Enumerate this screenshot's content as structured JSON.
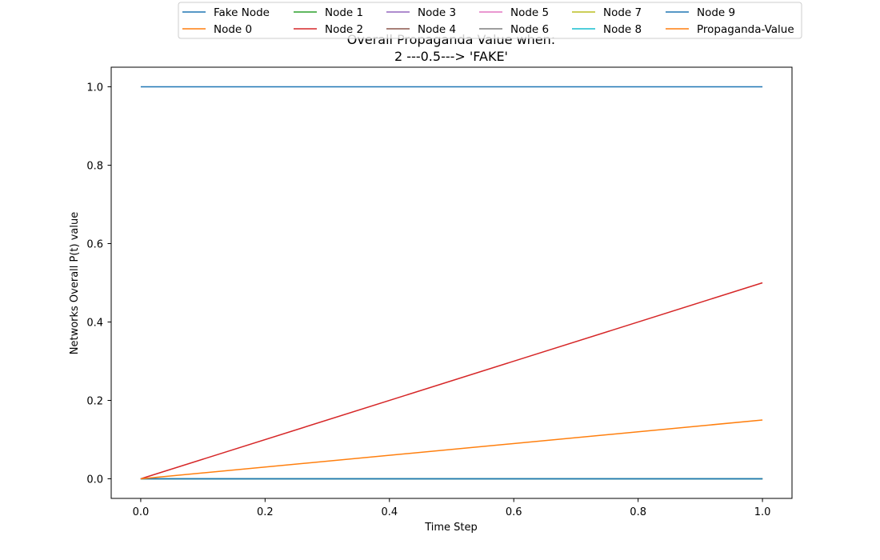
{
  "chart_data": {
    "type": "line",
    "title_lines": [
      "Overall Propaganda Value when:",
      "2 ---0.5---> 'FAKE'"
    ],
    "xlabel": "Time Step",
    "ylabel": "Networks Overall P(t) value",
    "xlim": [
      -0.0475,
      1.0475
    ],
    "ylim": [
      -0.05,
      1.05
    ],
    "x_ticks": [
      "0.0",
      "0.2",
      "0.4",
      "0.6",
      "0.8",
      "1.0"
    ],
    "y_ticks": [
      "0.0",
      "0.2",
      "0.4",
      "0.6",
      "0.8",
      "1.0"
    ],
    "legend_position": "upper-center",
    "x": [
      0,
      1
    ],
    "series": [
      {
        "name": "Fake Node",
        "color": "#1f77b4",
        "values": [
          1.0,
          1.0
        ]
      },
      {
        "name": "Node 0",
        "color": "#ff7f0e",
        "values": [
          0.0,
          0.0
        ]
      },
      {
        "name": "Node 1",
        "color": "#2ca02c",
        "values": [
          0.0,
          0.0
        ]
      },
      {
        "name": "Node 2",
        "color": "#d62728",
        "values": [
          0.0,
          0.5
        ]
      },
      {
        "name": "Node 3",
        "color": "#9467bd",
        "values": [
          0.0,
          0.0
        ]
      },
      {
        "name": "Node 4",
        "color": "#8c564b",
        "values": [
          0.0,
          0.0
        ]
      },
      {
        "name": "Node 5",
        "color": "#e377c2",
        "values": [
          0.0,
          0.0
        ]
      },
      {
        "name": "Node 6",
        "color": "#7f7f7f",
        "values": [
          0.0,
          0.0
        ]
      },
      {
        "name": "Node 7",
        "color": "#bcbd22",
        "values": [
          0.0,
          0.0
        ]
      },
      {
        "name": "Node 8",
        "color": "#17becf",
        "values": [
          0.0,
          0.0
        ]
      },
      {
        "name": "Node 9",
        "color": "#1f77b4",
        "values": [
          0.0,
          0.0
        ]
      },
      {
        "name": "Propaganda-Value",
        "color": "#ff7f0e",
        "values": [
          0.0,
          0.15
        ]
      }
    ]
  }
}
